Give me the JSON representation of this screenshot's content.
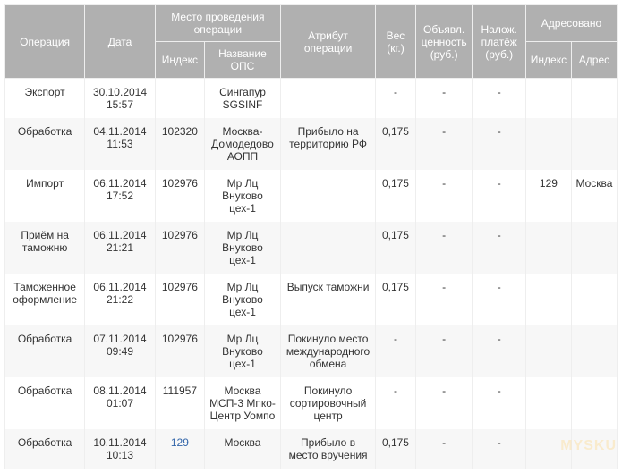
{
  "table": {
    "header": {
      "operation": "Операция",
      "date": "Дата",
      "location_group": "Место проведения операции",
      "location_index": "Индекс",
      "location_ops": "Название ОПС",
      "attribute": "Атрибут операции",
      "weight": "Вес (кг.)",
      "declared_value": "Объявл. ценность (руб.)",
      "cod": "Налож. платёж (руб.)",
      "addressed_group": "Адресовано",
      "addressed_index": "Индекс",
      "addressed_addr": "Адрес"
    },
    "col_widths": [
      "84",
      "74",
      "52",
      "80",
      "100",
      "42",
      "60",
      "56",
      "48",
      "48"
    ],
    "rows": [
      {
        "operation": "Экспорт",
        "date": "30.10.2014 15:57",
        "index": "",
        "ops": "Сингапур SGSINF",
        "attr": "",
        "weight": "-",
        "decl": "-",
        "cod": "-",
        "aidx": "",
        "aaddr": ""
      },
      {
        "operation": "Обработка",
        "date": "04.11.2014 11:53",
        "index": "102320",
        "ops": "Москва-Домодедово АОПП",
        "attr": "Прибыло на территорию РФ",
        "weight": "0,175",
        "decl": "-",
        "cod": "-",
        "aidx": "",
        "aaddr": ""
      },
      {
        "operation": "Импорт",
        "date": "06.11.2014 17:52",
        "index": "102976",
        "ops": "Мр Лц Внуково цех-1",
        "attr": "",
        "weight": "0,175",
        "decl": "-",
        "cod": "-",
        "aidx": "129",
        "aaddr": "Москва"
      },
      {
        "operation": "Приём на таможню",
        "date": "06.11.2014 21:21",
        "index": "102976",
        "ops": "Мр Лц Внуково цех-1",
        "attr": "",
        "weight": "0,175",
        "decl": "-",
        "cod": "-",
        "aidx": "",
        "aaddr": ""
      },
      {
        "operation": "Таможенное оформление",
        "date": "06.11.2014 21:22",
        "index": "102976",
        "ops": "Мр Лц Внуково цех-1",
        "attr": "Выпуск таможни",
        "weight": "0,175",
        "decl": "-",
        "cod": "-",
        "aidx": "",
        "aaddr": ""
      },
      {
        "operation": "Обработка",
        "date": "07.11.2014 09:49",
        "index": "102976",
        "ops": "Мр Лц Внуково цех-1",
        "attr": "Покинуло место международного обмена",
        "weight": "-",
        "decl": "-",
        "cod": "-",
        "aidx": "",
        "aaddr": ""
      },
      {
        "operation": "Обработка",
        "date": "08.11.2014 01:07",
        "index": "111957",
        "ops": "Москва МСП-3 Мпко-Центр Уомпо",
        "attr": "Покинуло сортировочный центр",
        "weight": "-",
        "decl": "-",
        "cod": "-",
        "aidx": "",
        "aaddr": ""
      },
      {
        "operation": "Обработка",
        "date": "10.11.2014 10:13",
        "index": "129",
        "index_link": true,
        "ops": "Москва",
        "attr": "Прибыло в место вручения",
        "weight": "0,175",
        "decl": "-",
        "cod": "-",
        "aidx": "",
        "aaddr": ""
      }
    ]
  },
  "watermark": "MYSKU",
  "colors": {
    "header_bg": "#b0b0b0",
    "header_fg": "#ffffff",
    "row_even_bg": "#f7f7f7",
    "row_odd_bg": "#ffffff",
    "border": "#eeeeee",
    "text": "#333333",
    "link": "#3366aa"
  }
}
